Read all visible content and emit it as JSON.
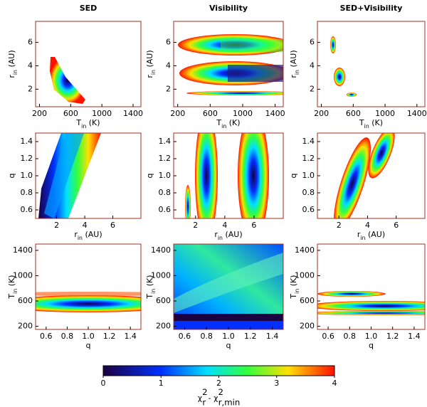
{
  "chart_data": [
    {
      "type": "contour",
      "title": "SED",
      "xlabel": [
        {
          "text": "T"
        },
        {
          "text": "in",
          "pos": "sub"
        },
        {
          "text": " (K)"
        }
      ],
      "ylabel": [
        {
          "text": "r"
        },
        {
          "text": "in",
          "pos": "sub"
        },
        {
          "text": " (AU)"
        }
      ],
      "xlim": [
        150,
        1500
      ],
      "xticks": [
        200,
        600,
        1000,
        1400
      ],
      "ylim": [
        0.5,
        7.8
      ],
      "yticks": [
        2,
        4,
        6
      ]
    },
    {
      "type": "contour",
      "title": "Visibility",
      "xlabel": [
        {
          "text": "T"
        },
        {
          "text": "in",
          "pos": "sub"
        },
        {
          "text": " (K)"
        }
      ],
      "ylabel": [
        {
          "text": "r"
        },
        {
          "text": "in",
          "pos": "sub"
        },
        {
          "text": " (AU)"
        }
      ],
      "xlim": [
        150,
        1500
      ],
      "xticks": [
        200,
        600,
        1000,
        1400
      ],
      "ylim": [
        0.5,
        7.8
      ],
      "yticks": [
        2,
        4,
        6
      ]
    },
    {
      "type": "contour",
      "title": "SED+Visibility",
      "xlabel": [
        {
          "text": "T"
        },
        {
          "text": "in",
          "pos": "sub"
        },
        {
          "text": " (K)"
        }
      ],
      "ylabel": [
        {
          "text": "r"
        },
        {
          "text": "in",
          "pos": "sub"
        },
        {
          "text": " (AU)"
        }
      ],
      "xlim": [
        150,
        1500
      ],
      "xticks": [
        200,
        600,
        1000,
        1400
      ],
      "ylim": [
        0.5,
        7.8
      ],
      "yticks": [
        2,
        4,
        6
      ]
    },
    {
      "type": "contour",
      "xlabel": [
        {
          "text": "r"
        },
        {
          "text": "in",
          "pos": "sub"
        },
        {
          "text": " (AU)"
        }
      ],
      "ylabel": [
        {
          "text": "q"
        }
      ],
      "xlim": [
        0.5,
        8
      ],
      "xticks": [
        2,
        4,
        6
      ],
      "ylim": [
        0.5,
        1.5
      ],
      "yticks": [
        0.6,
        0.8,
        {
          "value": 1,
          "label": "1.0"
        },
        1.2,
        1.4
      ]
    },
    {
      "type": "contour",
      "xlabel": [
        {
          "text": "r"
        },
        {
          "text": "in",
          "pos": "sub"
        },
        {
          "text": " (AU)"
        }
      ],
      "ylabel": [
        {
          "text": "q"
        }
      ],
      "xlim": [
        0.5,
        8
      ],
      "xticks": [
        2,
        4,
        6
      ],
      "ylim": [
        0.5,
        1.5
      ],
      "yticks": [
        0.6,
        0.8,
        {
          "value": 1,
          "label": "1.0"
        },
        1.2,
        1.4
      ]
    },
    {
      "type": "contour",
      "xlabel": [
        {
          "text": "r"
        },
        {
          "text": "in",
          "pos": "sub"
        },
        {
          "text": " (AU)"
        }
      ],
      "ylabel": [
        {
          "text": "q"
        }
      ],
      "xlim": [
        0.5,
        8
      ],
      "xticks": [
        2,
        4,
        6
      ],
      "ylim": [
        0.5,
        1.5
      ],
      "yticks": [
        0.6,
        0.8,
        {
          "value": 1,
          "label": "1.0"
        },
        1.2,
        1.4
      ]
    },
    {
      "type": "contour",
      "xlabel": [
        {
          "text": "q"
        }
      ],
      "ylabel": [
        {
          "text": "T"
        },
        {
          "text": "in",
          "pos": "sub"
        },
        {
          "text": " (K)"
        }
      ],
      "xlim": [
        0.5,
        1.5
      ],
      "xticks": [
        0.6,
        0.8,
        {
          "value": 1,
          "label": "1.0"
        },
        1.2,
        1.4
      ],
      "ylim": [
        150,
        1500
      ],
      "yticks": [
        200,
        600,
        1000,
        1400
      ]
    },
    {
      "type": "contour",
      "xlabel": [
        {
          "text": "q"
        }
      ],
      "ylabel": [
        {
          "text": "T"
        },
        {
          "text": "in",
          "pos": "sub"
        },
        {
          "text": " (K)"
        }
      ],
      "xlim": [
        0.5,
        1.5
      ],
      "xticks": [
        0.6,
        0.8,
        {
          "value": 1,
          "label": "1.0"
        },
        1.2,
        1.4
      ],
      "ylim": [
        150,
        1500
      ],
      "yticks": [
        200,
        600,
        1000,
        1400
      ]
    },
    {
      "type": "contour",
      "xlabel": [
        {
          "text": "q"
        }
      ],
      "ylabel": [
        {
          "text": "T"
        },
        {
          "text": "in",
          "pos": "sub"
        },
        {
          "text": " (K)"
        }
      ],
      "xlim": [
        0.5,
        1.5
      ],
      "xticks": [
        0.6,
        0.8,
        {
          "value": 1,
          "label": "1.0"
        },
        1.2,
        1.4
      ],
      "ylim": [
        150,
        1500
      ],
      "yticks": [
        200,
        600,
        1000,
        1400
      ]
    }
  ],
  "colorbar": {
    "lim": [
      0,
      4
    ],
    "ticks": [
      0,
      1,
      2,
      3,
      4
    ],
    "label": [
      {
        "text": "χ"
      },
      {
        "text": "2",
        "pos": "sup"
      },
      {
        "text": "r",
        "pos": "sub"
      },
      {
        "text": " - "
      },
      {
        "text": "χ"
      },
      {
        "text": "2",
        "pos": "sup"
      },
      {
        "text": "r,min",
        "pos": "sub"
      }
    ]
  }
}
